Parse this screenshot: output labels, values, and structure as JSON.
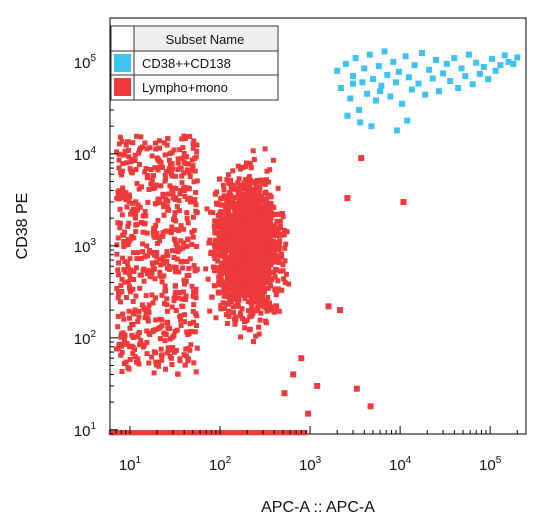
{
  "chart_data": {
    "type": "scatter",
    "xlabel": "APC-A :: APC-A",
    "ylabel": "CD38 PE",
    "x_scale": "log",
    "y_scale": "log",
    "xlim": [
      6,
      250000
    ],
    "ylim": [
      9,
      300000
    ],
    "x_ticks": [
      {
        "value": 10,
        "base": "10",
        "exp": "1"
      },
      {
        "value": 100,
        "base": "10",
        "exp": "2"
      },
      {
        "value": 1000,
        "base": "10",
        "exp": "3"
      },
      {
        "value": 10000,
        "base": "10",
        "exp": "4"
      },
      {
        "value": 100000,
        "base": "10",
        "exp": "5"
      }
    ],
    "y_ticks": [
      {
        "value": 10,
        "base": "10",
        "exp": "1"
      },
      {
        "value": 100,
        "base": "10",
        "exp": "2"
      },
      {
        "value": 1000,
        "base": "10",
        "exp": "3"
      },
      {
        "value": 10000,
        "base": "10",
        "exp": "4"
      },
      {
        "value": 100000,
        "base": "10",
        "exp": "5"
      }
    ],
    "grid": false,
    "legend": {
      "header": "Subset Name",
      "placement": "top-left",
      "entries": [
        {
          "label": "CD38++CD138",
          "color": "#3ec3ee"
        },
        {
          "label": "Lympho+mono",
          "color": "#ee3a3a"
        }
      ]
    },
    "series": [
      {
        "name": "CD38++CD138",
        "color": "#3ec3ee",
        "points": [
          [
            2000,
            80000
          ],
          [
            2200,
            52000
          ],
          [
            2500,
            95000
          ],
          [
            2800,
            40000
          ],
          [
            3000,
            70000
          ],
          [
            3200,
            110000
          ],
          [
            3500,
            30000
          ],
          [
            3800,
            60000
          ],
          [
            4000,
            85000
          ],
          [
            4300,
            45000
          ],
          [
            4600,
            120000
          ],
          [
            5000,
            65000
          ],
          [
            5400,
            38000
          ],
          [
            5800,
            90000
          ],
          [
            6200,
            55000
          ],
          [
            6700,
            130000
          ],
          [
            7200,
            72000
          ],
          [
            7800,
            42000
          ],
          [
            8400,
            100000
          ],
          [
            9000,
            60000
          ],
          [
            9700,
            78000
          ],
          [
            10500,
            35000
          ],
          [
            11500,
            115000
          ],
          [
            12500,
            68000
          ],
          [
            13500,
            50000
          ],
          [
            14500,
            92000
          ],
          [
            16000,
            58000
          ],
          [
            17500,
            125000
          ],
          [
            19000,
            44000
          ],
          [
            21000,
            82000
          ],
          [
            23000,
            66000
          ],
          [
            25000,
            105000
          ],
          [
            27000,
            48000
          ],
          [
            30000,
            75000
          ],
          [
            33000,
            95000
          ],
          [
            36000,
            62000
          ],
          [
            40000,
            110000
          ],
          [
            44000,
            52000
          ],
          [
            48000,
            85000
          ],
          [
            53000,
            70000
          ],
          [
            58000,
            120000
          ],
          [
            64000,
            57000
          ],
          [
            70000,
            98000
          ],
          [
            77000,
            74000
          ],
          [
            85000,
            88000
          ],
          [
            95000,
            65000
          ],
          [
            105000,
            108000
          ],
          [
            115000,
            80000
          ],
          [
            130000,
            92000
          ],
          [
            145000,
            118000
          ],
          [
            160000,
            100000
          ],
          [
            180000,
            95000
          ],
          [
            200000,
            112000
          ],
          [
            3600,
            22000
          ],
          [
            2600,
            26000
          ],
          [
            4800,
            20000
          ],
          [
            9200,
            18000
          ],
          [
            12000,
            23000
          ],
          [
            3000,
            58000
          ],
          [
            6000,
            48000
          ]
        ]
      },
      {
        "name": "Lympho+mono",
        "color": "#ee3a3a",
        "points": [
          [
            3700,
            9000
          ],
          [
            2600,
            3300
          ],
          [
            310,
            220
          ],
          [
            420,
            220
          ],
          [
            2150,
            200
          ],
          [
            1600,
            220
          ],
          [
            10900,
            3000
          ],
          [
            3300,
            28
          ],
          [
            4700,
            18
          ],
          [
            1200,
            30
          ],
          [
            800,
            60
          ],
          [
            650,
            40
          ],
          [
            520,
            25
          ],
          [
            950,
            15
          ]
        ]
      }
    ]
  }
}
